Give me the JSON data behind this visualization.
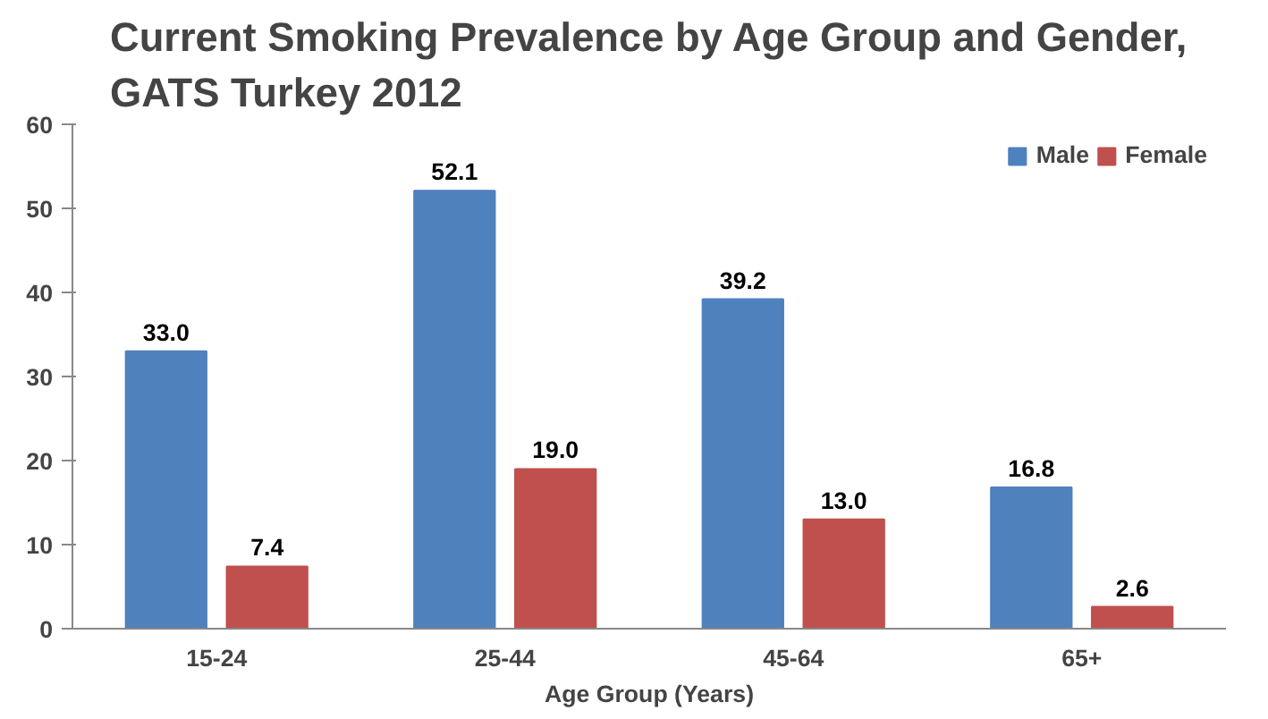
{
  "chart_data": {
    "type": "bar",
    "title": "Current Smoking Prevalence by Age Group and Gender, GATS Turkey 2012",
    "xlabel": "Age Group (Years)",
    "categories": [
      "15-24",
      "25-44",
      "45-64",
      "65+"
    ],
    "series": [
      {
        "name": "Male",
        "color": "#4f81bd",
        "values": [
          33.0,
          52.1,
          39.2,
          16.8
        ],
        "value_labels": [
          "33.0",
          "52.1",
          "39.2",
          "16.8"
        ]
      },
      {
        "name": "Female",
        "color": "#c0504d",
        "values": [
          7.4,
          19.0,
          13.0,
          2.6
        ],
        "value_labels": [
          "7.4",
          "19.0",
          "13.0",
          "2.6"
        ]
      }
    ],
    "ylim": [
      0,
      60
    ],
    "yticks": [
      0,
      10,
      20,
      30,
      40,
      50,
      60
    ],
    "grid": false,
    "legend": "top right"
  }
}
